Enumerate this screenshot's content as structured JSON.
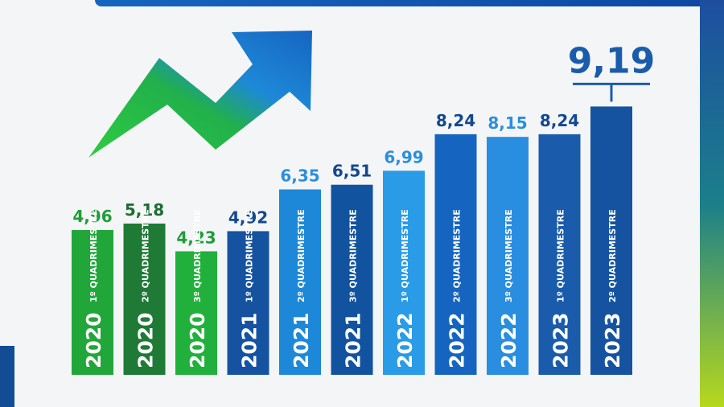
{
  "chart_data": {
    "type": "bar",
    "title": "",
    "xlabel": "",
    "ylabel": "",
    "ylim": [
      0,
      10
    ],
    "grid": false,
    "categories": [
      {
        "year": "2020",
        "period": "1º QUADRIMESTRE",
        "value_label": "4,96"
      },
      {
        "year": "2020",
        "period": "2º QUADRIMESTRE",
        "value_label": "5,18"
      },
      {
        "year": "2020",
        "period": "3º QUADRIMESTRE",
        "value_label": "4,23"
      },
      {
        "year": "2021",
        "period": "1º QUADRIMESTRE",
        "value_label": "4,92"
      },
      {
        "year": "2021",
        "period": "2º QUADRIMESTRE",
        "value_label": "6,35"
      },
      {
        "year": "2021",
        "period": "3º QUADRIMESTRE",
        "value_label": "6,51"
      },
      {
        "year": "2022",
        "period": "1º QUADRIMESTRE",
        "value_label": "6,99"
      },
      {
        "year": "2022",
        "period": "2º QUADRIMESTRE",
        "value_label": "8,24"
      },
      {
        "year": "2022",
        "period": "3º QUADRIMESTRE",
        "value_label": "8,15"
      },
      {
        "year": "2023",
        "period": "1º QUADRIMESTRE",
        "value_label": "8,24"
      },
      {
        "year": "2023",
        "period": "2º QUADRIMESTRE",
        "value_label": "9,19"
      }
    ],
    "values": [
      4.96,
      5.18,
      4.23,
      4.92,
      6.35,
      6.51,
      6.99,
      8.24,
      8.15,
      8.24,
      9.19
    ],
    "colors": [
      "#21a63a",
      "#1e7a35",
      "#22b03c",
      "#1553a0",
      "#1e88d8",
      "#12539f",
      "#2a9be6",
      "#1565c0",
      "#2a8ee0",
      "#1a5cab",
      "#1553a0"
    ],
    "label_colors": [
      "#1e9e38",
      "#1a6e31",
      "#1e9e38",
      "#12488f",
      "#2a8ee0",
      "#12488f",
      "#2a8ee0",
      "#12488f",
      "#2a8ee0",
      "#12488f",
      "#1a5cab"
    ],
    "highlight_index": 10,
    "annotations": [
      "rising-trend-arrow"
    ]
  }
}
